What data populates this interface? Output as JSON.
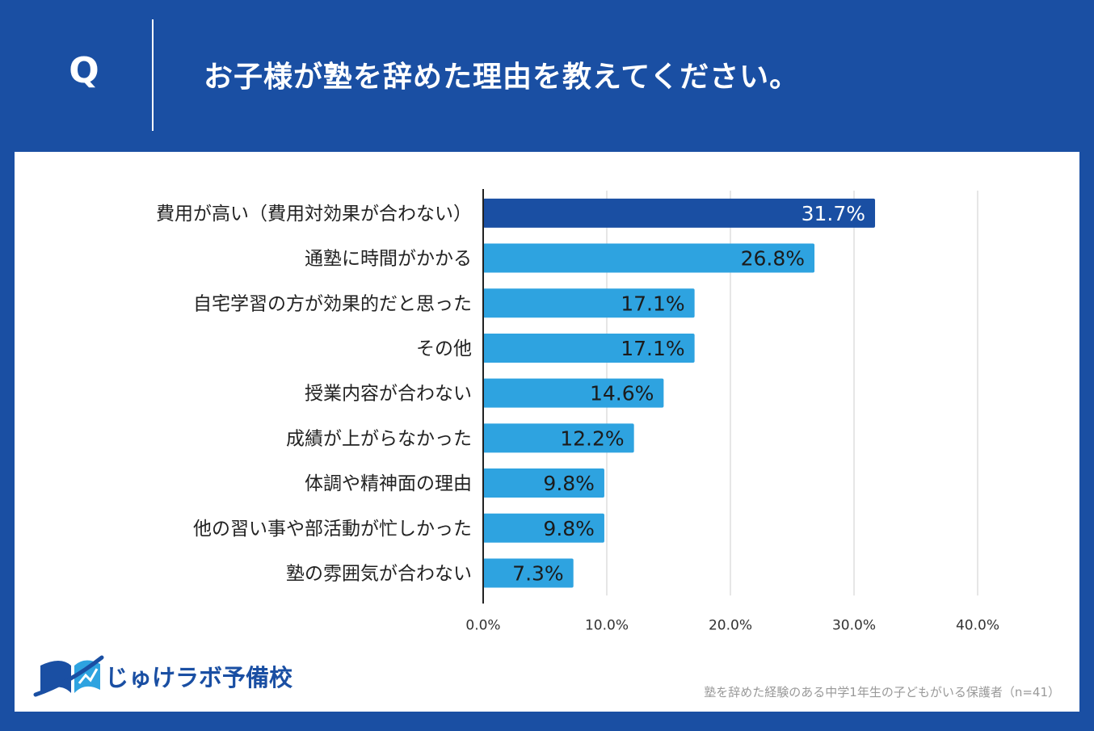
{
  "header": {
    "q_label": "Q",
    "question": "お子様が塾を辞めた理由を教えてください。"
  },
  "colors": {
    "background": "#1a4fa3",
    "highlight_bar": "#1a4fa3",
    "bar": "#2ea3e0",
    "grid": "#cccccc",
    "axis": "#222222"
  },
  "chart_data": {
    "type": "bar",
    "orientation": "horizontal",
    "categories": [
      "費用が高い（費用対効果が合わない）",
      "通塾に時間がかかる",
      "自宅学習の方が効果的だと思った",
      "その他",
      "授業内容が合わない",
      "成績が上がらなかった",
      "体調や精神面の理由",
      "他の習い事や部活動が忙しかった",
      "塾の雰囲気が合わない"
    ],
    "values": [
      31.7,
      26.8,
      17.1,
      17.1,
      14.6,
      12.2,
      9.8,
      9.8,
      7.3
    ],
    "value_labels": [
      "31.7%",
      "26.8%",
      "17.1%",
      "17.1%",
      "14.6%",
      "12.2%",
      "9.8%",
      "9.8%",
      "7.3%"
    ],
    "xlim": [
      0,
      40
    ],
    "xticks": [
      0,
      10,
      20,
      30,
      40
    ],
    "xtick_labels": [
      "0.0%",
      "10.0%",
      "20.0%",
      "30.0%",
      "40.0%"
    ],
    "highlighted_category_index": 0,
    "grid": true
  },
  "logo": {
    "name": "じゅけラボ予備校",
    "icon": "open-book-icon"
  },
  "footnote": "塾を辞めた経験のある中学1年生の子どもがいる保護者（n=41）"
}
